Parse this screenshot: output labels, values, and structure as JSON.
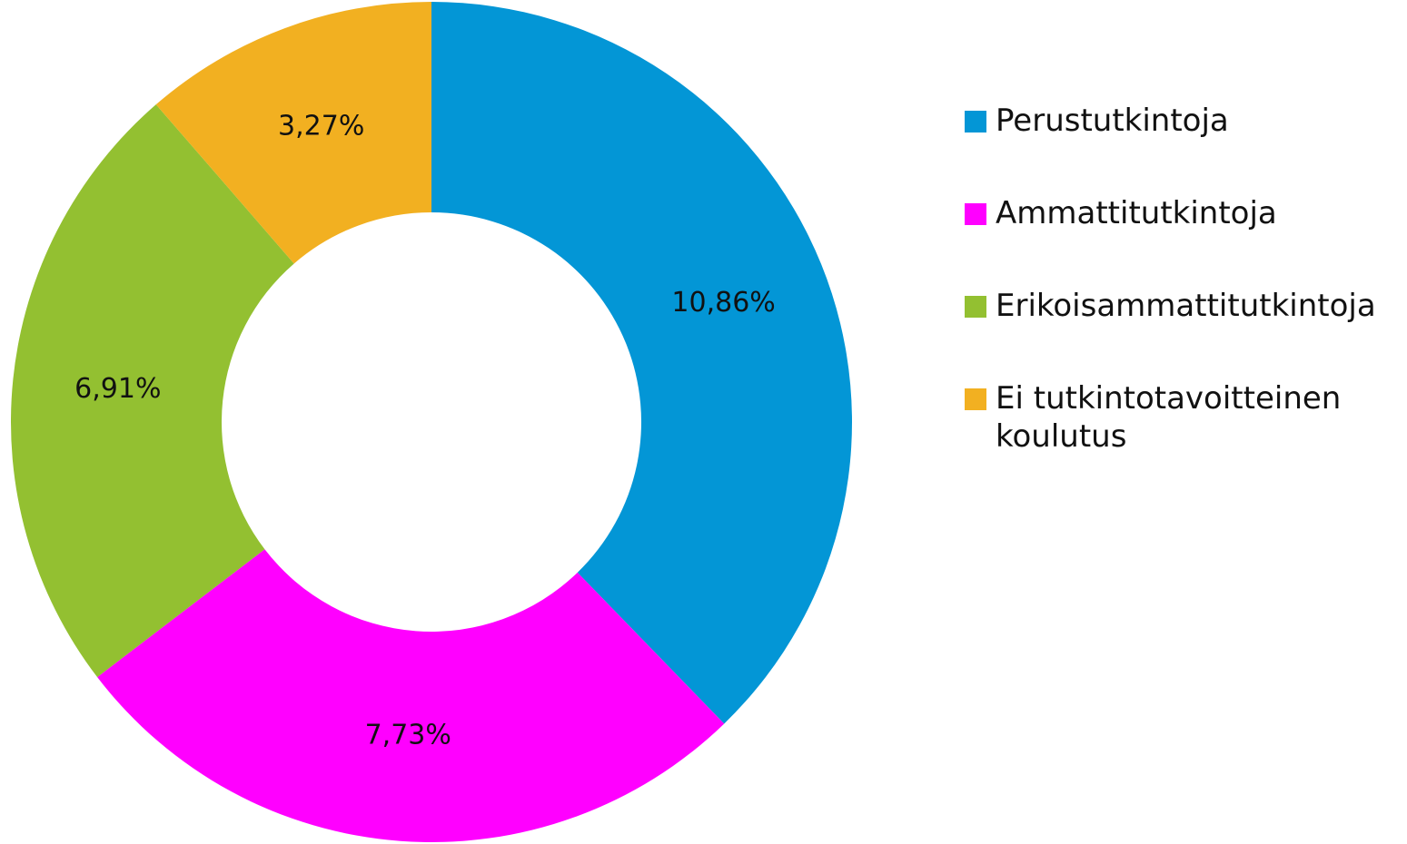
{
  "chart_data": {
    "type": "pie",
    "categories": [
      "Perustutkintoja",
      "Ammattitutkintoja",
      "Erikoisammattitutkintoja",
      "Ei tutkintotavoitteinen koulutus"
    ],
    "values": [
      10.86,
      7.73,
      6.91,
      3.27
    ],
    "value_labels": [
      "10,86%",
      "7,73%",
      "6,91%",
      "3,27%"
    ],
    "colors": [
      "#0396d6",
      "#ff00ff",
      "#93c031",
      "#f2b021"
    ],
    "legend": "right"
  }
}
